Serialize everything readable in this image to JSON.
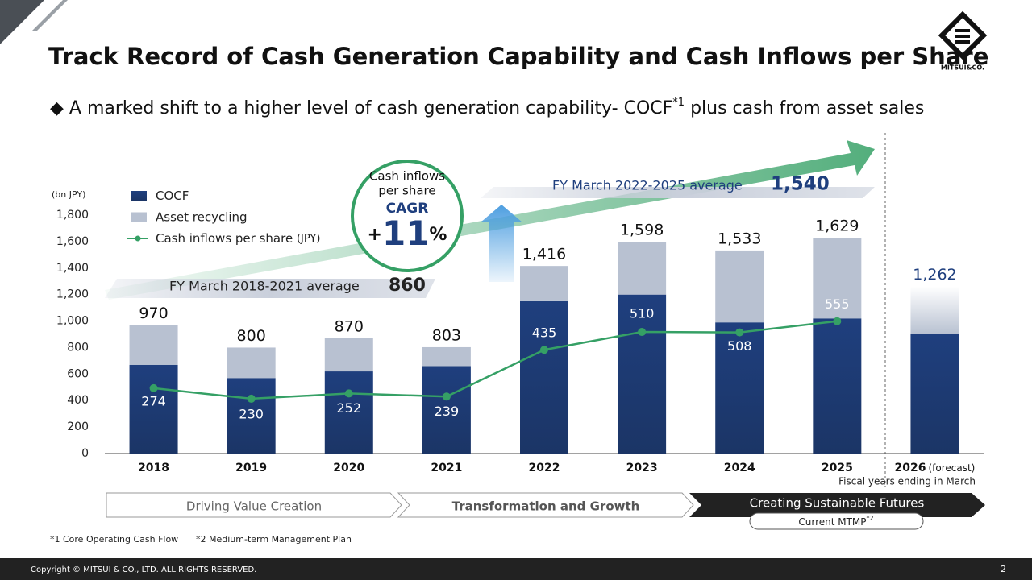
{
  "header": {
    "title": "Track Record of Cash Generation Capability and Cash Inflows per Share",
    "subtitle": {
      "text": "A marked shift to a higher level of cash generation capability- COCF",
      "sup": "*1",
      "rest": " plus cash from asset sales"
    },
    "logo": "MITSUI&CO."
  },
  "chart_data": {
    "type": "bar",
    "unit_label": "(bn JPY)",
    "categories": [
      "2018",
      "2019",
      "2020",
      "2021",
      "2022",
      "2023",
      "2024",
      "2025",
      "2026"
    ],
    "forecast_note": "(forecast)",
    "x_note": "Fiscal years ending in March",
    "ylim": [
      0,
      1800
    ],
    "yticks": [
      0,
      200,
      400,
      600,
      800,
      {
        "value": 1000,
        "label": "1,000"
      },
      {
        "value": 1200,
        "label": "1,200"
      },
      {
        "value": 1400,
        "label": "1,400"
      },
      {
        "value": 1600,
        "label": "1,600"
      },
      {
        "value": 1800,
        "label": "1,800"
      }
    ],
    "y2lim": [
      0,
      1000
    ],
    "series": [
      {
        "name": "COCF",
        "color": "#1f3f7e",
        "values": [
          670,
          570,
          620,
          660,
          1150,
          1200,
          990,
          1020,
          900
        ]
      },
      {
        "name": "Asset recycling",
        "color": "#b8c1d1",
        "values": [
          300,
          230,
          250,
          143,
          266,
          398,
          543,
          609,
          362
        ]
      },
      {
        "name": "Cash inflows per share",
        "name_unit": "(JPY)",
        "color": "#35a065",
        "axis": "y2",
        "type": "line",
        "values": [
          274,
          230,
          252,
          239,
          435,
          510,
          508,
          555,
          null
        ]
      }
    ],
    "totals": [
      970,
      800,
      870,
      803,
      1416,
      1598,
      1533,
      1629,
      1262
    ],
    "total_labels": [
      "970",
      "800",
      "870",
      "803",
      "1,416",
      "1,598",
      "1,533",
      "1,629",
      "1,262"
    ],
    "averages": [
      {
        "label": "FY March 2018-2021 average",
        "value": 860
      },
      {
        "label": "FY March 2022-2025 average",
        "value": {
          "value": 1540,
          "label": "1,540"
        }
      }
    ],
    "callout": {
      "lines": [
        "Cash inflows",
        "per share"
      ],
      "label": "CAGR",
      "sign": "+",
      "value": 11,
      "unit": "%"
    }
  },
  "phases": [
    "Driving Value Creation",
    "Transformation and Growth",
    "Creating Sustainable Futures"
  ],
  "mtmp": {
    "text": "Current MTMP",
    "sup": "*2"
  },
  "footnotes": [
    "*1 Core Operating Cash Flow",
    "*2 Medium-term Management Plan"
  ],
  "footer": {
    "copyright": "Copyright © MITSUI & CO., LTD. ALL RIGHTS RESERVED.",
    "page": "2"
  }
}
